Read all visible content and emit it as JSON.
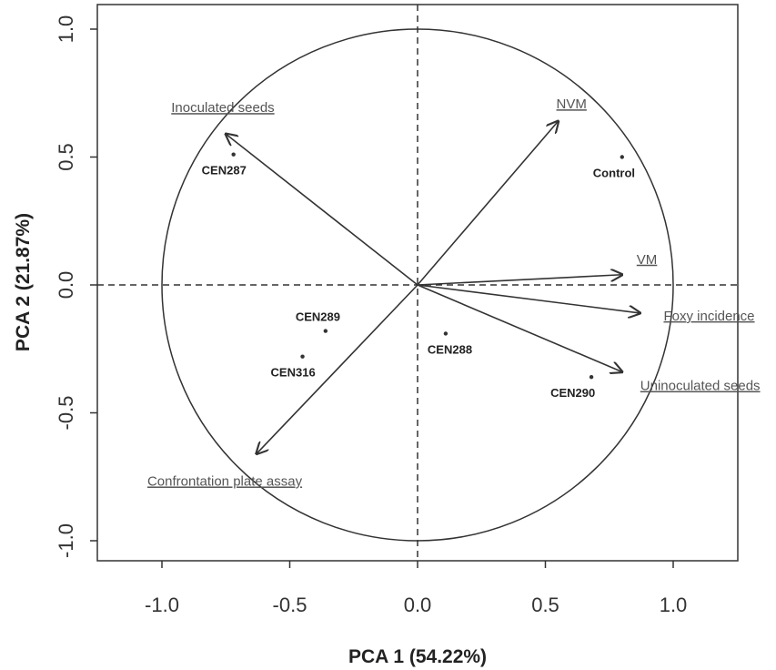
{
  "chart_data": {
    "type": "biplot",
    "xlabel": "PCA 1 (54.22%)",
    "ylabel": "PCA 2 (21.87%)",
    "xlim": [
      -1.25,
      1.25
    ],
    "ylim": [
      -1.1,
      1.05
    ],
    "x_ticks": [
      "-1.0",
      "-0.5",
      "0.0",
      "0.5",
      "1.0"
    ],
    "x_tick_values": [
      -1.0,
      -0.5,
      0.0,
      0.5,
      1.0
    ],
    "y_ticks": [
      "-1.0",
      "-0.5",
      "0.0",
      "0.5",
      "1.0"
    ],
    "y_tick_values": [
      -1.0,
      -0.5,
      0.0,
      0.5,
      1.0
    ],
    "circle_radius": 1.0,
    "reference_lines": [
      "x = 0",
      "y = 0"
    ],
    "vectors": [
      {
        "label": "Inoculated seeds",
        "x": -0.75,
        "y": 0.59
      },
      {
        "label": "NVM",
        "x": 0.55,
        "y": 0.64
      },
      {
        "label": "VM",
        "x": 0.8,
        "y": 0.04
      },
      {
        "label": "Foxy incidence",
        "x": 0.87,
        "y": -0.11
      },
      {
        "label": "Uninoculated seeds",
        "x": 0.8,
        "y": -0.34
      },
      {
        "label": "Confrontation plate assay",
        "x": -0.63,
        "y": -0.66
      }
    ],
    "points": [
      {
        "label": "CEN287",
        "x": -0.72,
        "y": 0.51
      },
      {
        "label": "Control",
        "x": 0.8,
        "y": 0.5
      },
      {
        "label": "CEN289",
        "x": -0.36,
        "y": -0.18
      },
      {
        "label": "CEN316",
        "x": -0.45,
        "y": -0.28
      },
      {
        "label": "CEN288",
        "x": 0.11,
        "y": -0.19
      },
      {
        "label": "CEN290",
        "x": 0.68,
        "y": -0.36
      }
    ]
  }
}
